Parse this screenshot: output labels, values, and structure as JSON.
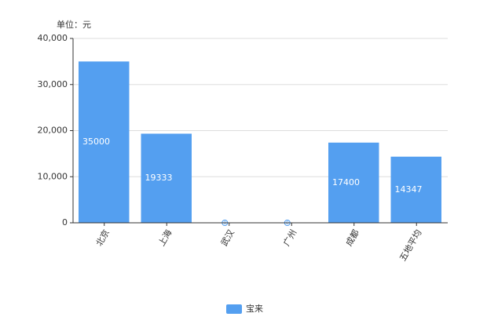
{
  "chart_data": {
    "type": "bar",
    "unit_label": "单位：元",
    "categories": [
      "北京",
      "上海",
      "武汉",
      "广州",
      "成都",
      "五地平均"
    ],
    "series": [
      {
        "name": "宝来",
        "color": "#549ff0",
        "values": [
          35000,
          19333,
          0,
          0,
          17400,
          14347
        ]
      }
    ],
    "ylim": [
      0,
      40000
    ],
    "yticks": [
      0,
      {
        "value": 10000,
        "label": "10,000"
      },
      {
        "value": 20000,
        "label": "20,000"
      },
      {
        "value": 30000,
        "label": "30,000"
      },
      {
        "value": 40000,
        "label": "40,000"
      }
    ],
    "grid": true,
    "legend": "bottom"
  }
}
